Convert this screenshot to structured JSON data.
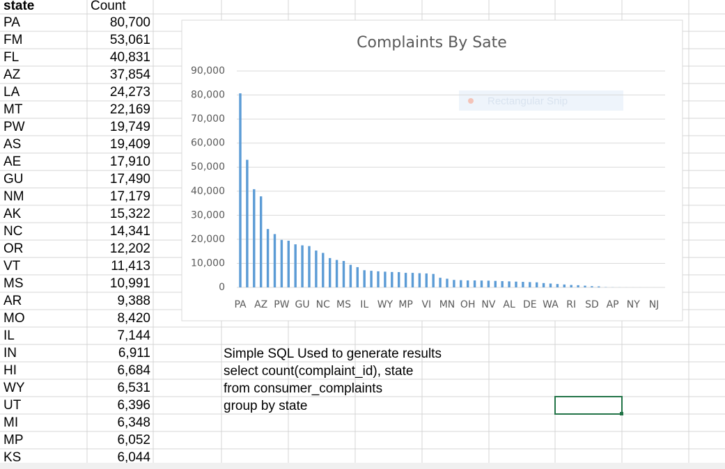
{
  "sheet": {
    "headers": [
      "state",
      "Count"
    ],
    "rows": [
      [
        "PA",
        "80,700"
      ],
      [
        "FM",
        "53,061"
      ],
      [
        "FL",
        "40,831"
      ],
      [
        "AZ",
        "37,854"
      ],
      [
        "LA",
        "24,273"
      ],
      [
        "MT",
        "22,169"
      ],
      [
        "PW",
        "19,749"
      ],
      [
        "AS",
        "19,409"
      ],
      [
        "AE",
        "17,910"
      ],
      [
        "GU",
        "17,490"
      ],
      [
        "NM",
        "17,179"
      ],
      [
        "AK",
        "15,322"
      ],
      [
        "NC",
        "14,341"
      ],
      [
        "OR",
        "12,202"
      ],
      [
        "VT",
        "11,413"
      ],
      [
        "MS",
        "10,991"
      ],
      [
        "AR",
        "9,388"
      ],
      [
        "MO",
        "8,420"
      ],
      [
        "IL",
        "7,144"
      ],
      [
        "IN",
        "6,911"
      ],
      [
        "HI",
        "6,684"
      ],
      [
        "WY",
        "6,531"
      ],
      [
        "UT",
        "6,396"
      ],
      [
        "MI",
        "6,348"
      ],
      [
        "MP",
        "6,052"
      ],
      [
        "KS",
        "6,044"
      ]
    ],
    "notes": [
      "Simple SQL Used to generate results",
      "select count(complaint_id), state",
      "from consumer_complaints",
      "group by state"
    ],
    "overlay": "Rectangular Snip"
  },
  "chart_data": {
    "type": "bar",
    "title": "Complaints By Sate",
    "categories": [
      "PA",
      null,
      null,
      "AZ",
      null,
      null,
      "PW",
      null,
      null,
      "GU",
      null,
      null,
      "NC",
      null,
      null,
      "MS",
      null,
      null,
      "IL",
      null,
      null,
      "WY",
      null,
      null,
      "MP",
      null,
      null,
      "VI",
      null,
      null,
      "MN",
      null,
      null,
      "OH",
      null,
      null,
      "NV",
      null,
      null,
      "AL",
      null,
      null,
      "DE",
      null,
      null,
      "WA",
      null,
      null,
      "RI",
      null,
      null,
      "SD",
      null,
      null,
      "AP",
      null,
      null,
      "NY",
      null,
      null,
      "NJ"
    ],
    "values": [
      80700,
      53061,
      40831,
      37854,
      24273,
      22169,
      19749,
      19409,
      17910,
      17490,
      17179,
      15322,
      14341,
      12202,
      11413,
      10991,
      9388,
      8420,
      7144,
      6911,
      6684,
      6531,
      6396,
      6348,
      6052,
      6044,
      5900,
      5800,
      5600,
      4000,
      3600,
      3100,
      3000,
      2900,
      2900,
      2850,
      2800,
      2700,
      2600,
      2500,
      2400,
      2300,
      2200,
      2100,
      1800,
      1600,
      1400,
      1200,
      1000,
      900,
      700,
      500,
      400,
      100,
      50,
      30,
      20,
      10,
      10,
      5,
      5
    ],
    "color": "#5b9bd5",
    "ylim": [
      0,
      90000
    ],
    "yticks": [
      0,
      {
        "value": 10000,
        "label": "10,000"
      },
      {
        "value": 20000,
        "label": "20,000"
      },
      {
        "value": 30000,
        "label": "30,000"
      },
      {
        "value": 40000,
        "label": "40,000"
      },
      {
        "value": 50000,
        "label": "50,000"
      },
      {
        "value": 60000,
        "label": "60,000"
      },
      {
        "value": 70000,
        "label": "70,000"
      },
      {
        "value": 80000,
        "label": "80,000"
      },
      {
        "value": 90000,
        "label": "90,000"
      }
    ],
    "grid": true
  }
}
